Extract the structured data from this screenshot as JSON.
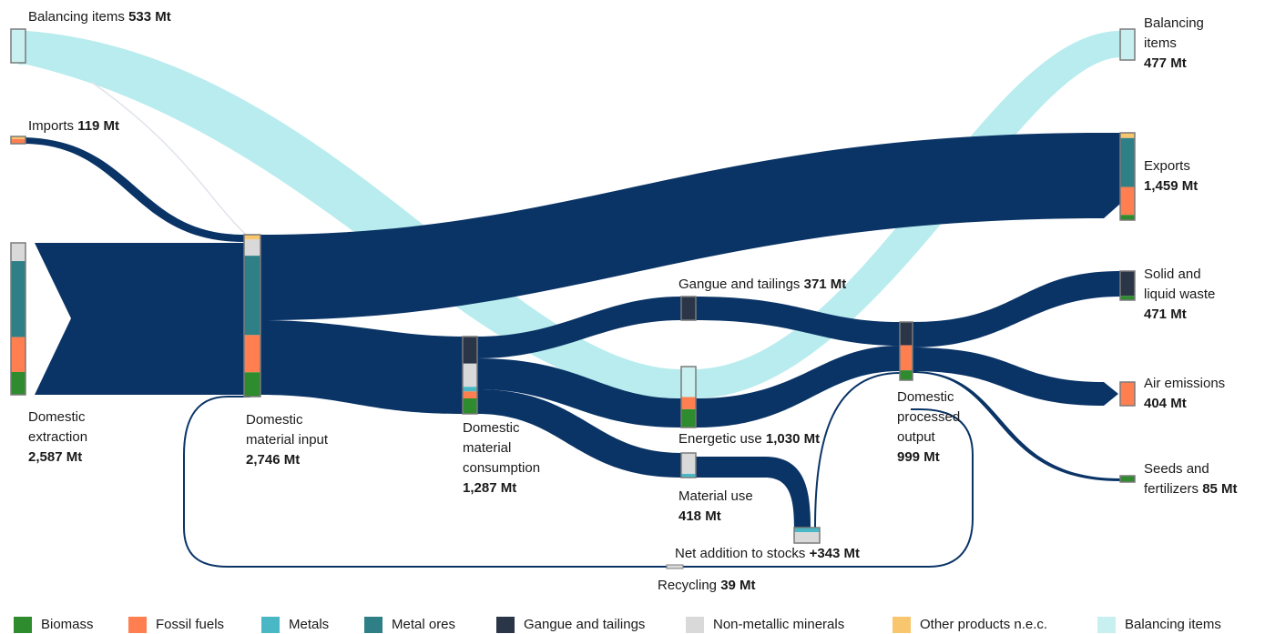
{
  "colors": {
    "flow": "#0a3466",
    "balancing_flow": "#b8ecee",
    "node_border": "#7a7a7a"
  },
  "legend": [
    {
      "label": "Biomass",
      "color": "#2e8b2e"
    },
    {
      "label": "Fossil fuels",
      "color": "#ff7f50"
    },
    {
      "label": "Metals",
      "color": "#4ab8c4"
    },
    {
      "label": "Metal ores",
      "color": "#2f7f87"
    },
    {
      "label": "Gangue and tailings",
      "color": "#2a3547"
    },
    {
      "label": "Non-metallic minerals",
      "color": "#d9d9d9"
    },
    {
      "label": "Other products n.e.c.",
      "color": "#f8c66d"
    },
    {
      "label": "Balancing items",
      "color": "#c8f0f0"
    }
  ],
  "nodes": {
    "balancing_in": {
      "label": "Balancing items",
      "value": "533 Mt"
    },
    "imports": {
      "label": "Imports",
      "value": "119 Mt"
    },
    "domestic_extraction": {
      "label": "Domestic\nextraction",
      "value": "2,587 Mt"
    },
    "dmi": {
      "label": "Domestic\nmaterial input",
      "value": "2,746 Mt"
    },
    "dmc": {
      "label": "Domestic\nmaterial\nconsumption",
      "value": "1,287 Mt"
    },
    "gangue": {
      "label": "Gangue and tailings",
      "value": "371 Mt"
    },
    "energetic": {
      "label": "Energetic use",
      "value": "1,030 Mt"
    },
    "material_use": {
      "label": "Material use",
      "value": "418 Mt"
    },
    "stocks": {
      "label": "Net addition to stocks",
      "value": "+343 Mt"
    },
    "recycling": {
      "label": "Recycling",
      "value": "39 Mt"
    },
    "dpo": {
      "label": "Domestic\nprocessed\noutput",
      "value": "999 Mt"
    },
    "balancing_out": {
      "label": "Balancing\nitems",
      "value": "477 Mt"
    },
    "exports": {
      "label": "Exports",
      "value": "1,459 Mt"
    },
    "waste": {
      "label": "Solid and\nliquid waste",
      "value": "471 Mt"
    },
    "air": {
      "label": "Air emissions",
      "value": "404 Mt"
    },
    "seeds": {
      "label": "Seeds and\nfertilizers",
      "value": "85 Mt"
    }
  },
  "node_composition": {
    "balancing_in": [
      [
        "Balancing items",
        1.0
      ]
    ],
    "imports": [
      [
        "Other products n.e.c.",
        0.35
      ],
      [
        "Fossil fuels",
        0.65
      ]
    ],
    "domestic_extraction": [
      [
        "Non-metallic minerals",
        0.12
      ],
      [
        "Metal ores",
        0.5
      ],
      [
        "Fossil fuels",
        0.23
      ],
      [
        "Biomass",
        0.15
      ]
    ],
    "dmi": [
      [
        "Other products n.e.c.",
        0.03
      ],
      [
        "Non-metallic minerals",
        0.1
      ],
      [
        "Metal ores",
        0.49
      ],
      [
        "Fossil fuels",
        0.23
      ],
      [
        "Biomass",
        0.15
      ]
    ],
    "dmc": [
      [
        "Gangue and tailings",
        0.35
      ],
      [
        "Non-metallic minerals",
        0.3
      ],
      [
        "Metals",
        0.06
      ],
      [
        "Fossil fuels",
        0.09
      ],
      [
        "Biomass",
        0.2
      ]
    ],
    "gangue": [
      [
        "Gangue and tailings",
        1.0
      ]
    ],
    "energetic": [
      [
        "Balancing items",
        0.5
      ],
      [
        "Fossil fuels",
        0.2
      ],
      [
        "Biomass",
        0.3
      ]
    ],
    "material_use": [
      [
        "Non-metallic minerals",
        0.85
      ],
      [
        "Metals",
        0.15
      ]
    ],
    "stocks": [
      [
        "Metals",
        0.3
      ],
      [
        "Non-metallic minerals",
        0.7
      ]
    ],
    "dpo": [
      [
        "Gangue and tailings",
        0.4
      ],
      [
        "Fossil fuels",
        0.43
      ],
      [
        "Biomass",
        0.17
      ]
    ],
    "balancing_out": [
      [
        "Balancing items",
        1.0
      ]
    ],
    "exports": [
      [
        "Other products n.e.c.",
        0.06
      ],
      [
        "Metal ores",
        0.56
      ],
      [
        "Fossil fuels",
        0.32
      ],
      [
        "Biomass",
        0.06
      ]
    ],
    "waste": [
      [
        "Gangue and tailings",
        0.85
      ],
      [
        "Biomass",
        0.15
      ]
    ],
    "air": [
      [
        "Fossil fuels",
        1.0
      ]
    ],
    "seeds": [
      [
        "Biomass",
        1.0
      ]
    ]
  }
}
